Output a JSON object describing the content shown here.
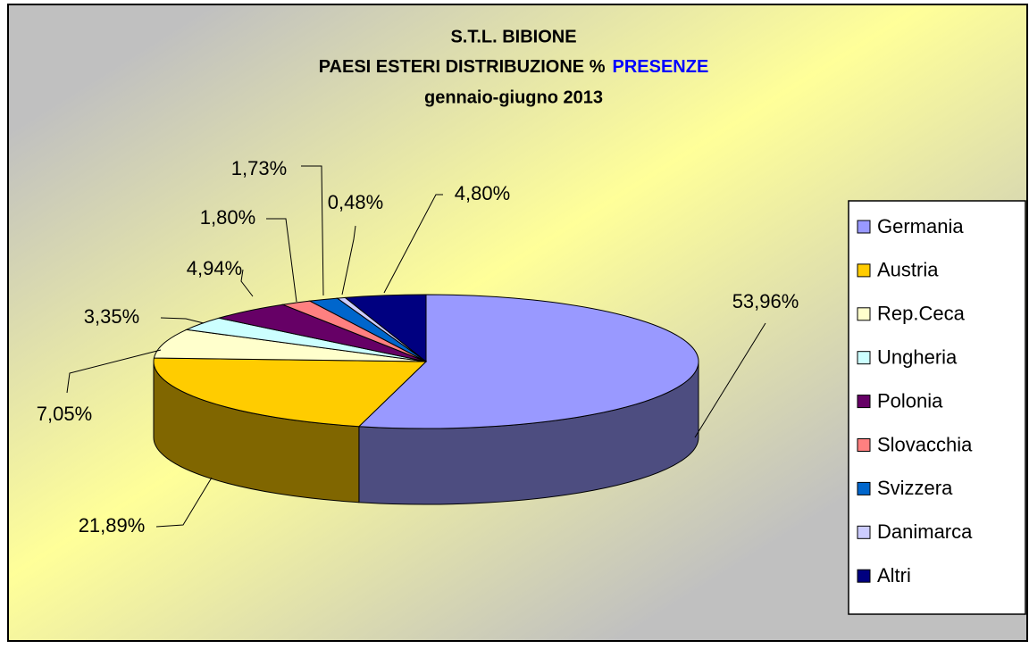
{
  "chart_data": {
    "type": "pie3d",
    "title": "S.T.L. BIBIONE",
    "subtitle": "PAESI ESTERI  DISTRIBUZIONE %",
    "subtitle_highlight": "PRESENZE",
    "subtitle_highlight_color": "#0000ff",
    "period": "gennaio-giugno 2013",
    "categories": [
      "Germania",
      "Austria",
      "Rep.Ceca",
      "Ungheria",
      "Polonia",
      "Slovacchia",
      "Svizzera",
      "Danimarca",
      "Altri"
    ],
    "values": [
      53.96,
      21.89,
      7.05,
      3.35,
      4.94,
      1.8,
      1.73,
      0.48,
      4.8
    ],
    "value_labels": [
      "53,96%",
      "21,89%",
      "7,05%",
      "3,35%",
      "4,94%",
      "1,80%",
      "1,73%",
      "0,48%",
      "4,80%"
    ],
    "colors": [
      "#9999ff",
      "#ffcc00",
      "#ffffcc",
      "#ccffff",
      "#660066",
      "#ff8080",
      "#0066cc",
      "#ccccff",
      "#000080"
    ],
    "legend": "right"
  }
}
